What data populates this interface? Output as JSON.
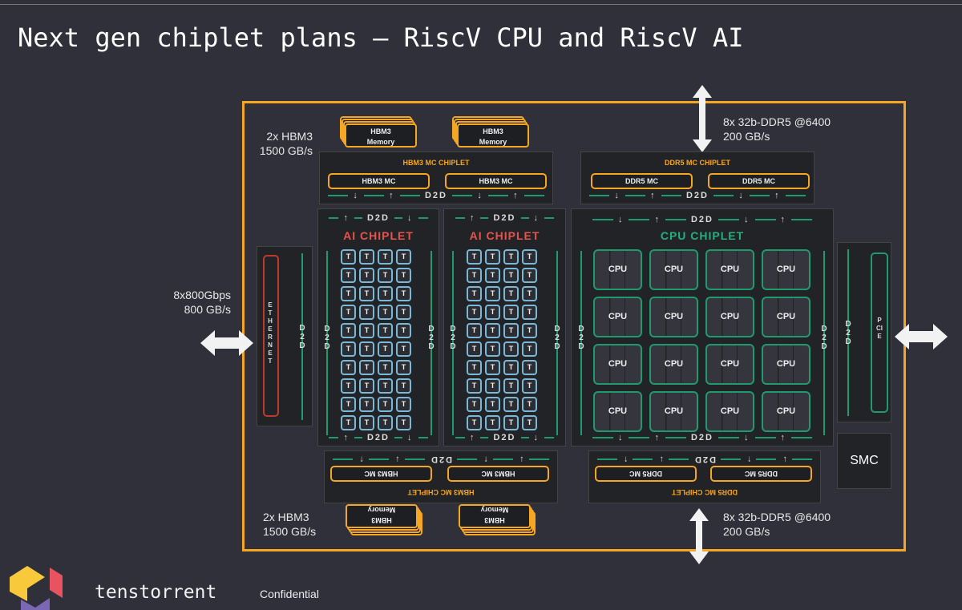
{
  "title": "Next gen chiplet plans – RiscV CPU and RiscV AI",
  "colors": {
    "frame": "#f5a623",
    "ai": "#e8534a",
    "cpu": "#22b07d",
    "tile_border": "#7bb8d6",
    "background": "#2f3039"
  },
  "labels": {
    "hbm_top": [
      "2x HBM3",
      "1500 GB/s"
    ],
    "hbm_bottom": [
      "2x HBM3",
      "1500 GB/s"
    ],
    "ddr_top": [
      "8x 32b-DDR5 @6400",
      "200 GB/s"
    ],
    "ddr_bottom": [
      "8x 32b-DDR5 @6400",
      "200 GB/s"
    ],
    "eth": [
      "8x800Gbps",
      "800 GB/s"
    ]
  },
  "hbm_memory": {
    "line1": "HBM3",
    "line2": "Memory"
  },
  "hbm_mc_chiplet": {
    "title": "HBM3 MC CHIPLET",
    "mc": "HBM3 MC"
  },
  "ddr_mc_chiplet": {
    "title": "DDR5 MC CHIPLET",
    "mc": "DDR5 MC"
  },
  "d2d": "D2D",
  "ai_chiplet": {
    "title": "AI CHIPLET",
    "tile": "T",
    "rows": 10,
    "cols": 4
  },
  "cpu_chiplet": {
    "title": "CPU CHIPLET",
    "core": "CPU",
    "rows": 4,
    "cols": 4
  },
  "ethernet": "ETHERNET",
  "pcie": "PCIE",
  "smc": "SMC",
  "footer": {
    "brand": "tenstorrent",
    "confidential": "Confidential"
  }
}
